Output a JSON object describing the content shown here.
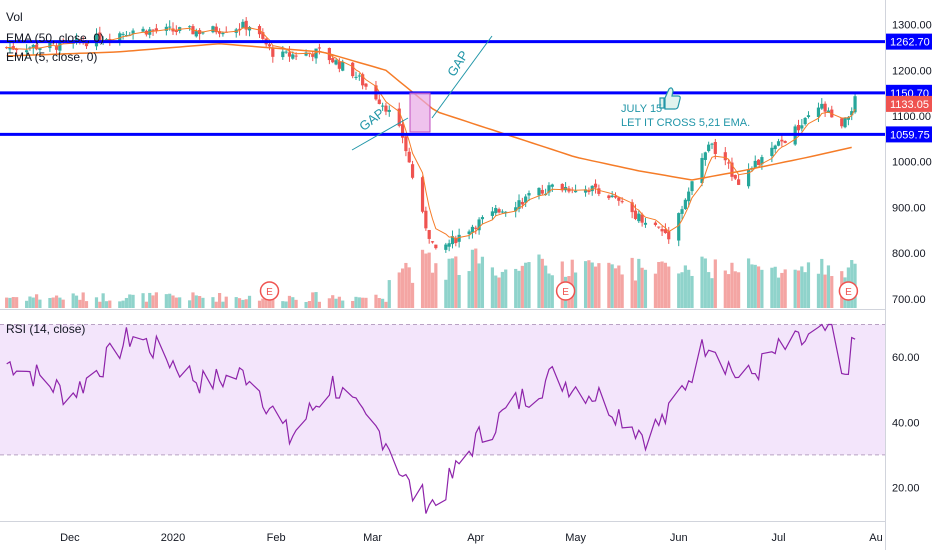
{
  "legend": {
    "vol": "Vol",
    "ema50": "EMA (50, close, 0)",
    "ema5": "EMA (5, close, 0)",
    "rsi": "RSI (14, close)"
  },
  "annotations": {
    "gap_left": "GAP",
    "gap_right": "GAP",
    "note_line1": "JULY 15",
    "note_line2": "LET IT CROSS 5,21 EMA.",
    "earnings_marker": "E"
  },
  "icons": [
    "thumbs-up-icon",
    "earnings-marker-icon"
  ],
  "colors": {
    "up": "#26a69a",
    "down": "#ef5350",
    "vol_up": "#8fd3cb",
    "vol_down": "#f4a5a3",
    "ema50": "#f57c28",
    "ema5": "#f57c28",
    "level": "#0000ff",
    "rsi": "#8e24aa",
    "rsi_band": "#f3e5fb",
    "annotation": "#2196a8",
    "current_price": "#ef5350"
  },
  "chart_data": [
    {
      "type": "candlestick",
      "title": "",
      "x_ticks": [
        "Dec",
        "2020",
        "Feb",
        "Mar",
        "Apr",
        "May",
        "Jun",
        "Jul",
        "Au"
      ],
      "y_ticks": [
        "1300.00",
        "1200.00",
        "1100.00",
        "1000.00",
        "900.00",
        "800.00",
        "700.00"
      ],
      "ylim": [
        680,
        1310
      ],
      "horizontal_levels": [
        {
          "label": "1262.70",
          "value": 1262.7
        },
        {
          "label": "1150.70",
          "value": 1150.7
        },
        {
          "label": "1059.75",
          "value": 1059.75
        }
      ],
      "current_price": {
        "label": "1133.05",
        "value": 1133.05
      },
      "earnings_markers": [
        "Jan",
        "Apr",
        "Jul"
      ],
      "ohlc_anchors": [
        {
          "date": "2019-11-15",
          "close": 1250
        },
        {
          "date": "2019-12-01",
          "close": 1255
        },
        {
          "date": "2019-12-20",
          "close": 1288
        },
        {
          "date": "2020-01-10",
          "close": 1285
        },
        {
          "date": "2020-01-24",
          "close": 1298
        },
        {
          "date": "2020-02-01",
          "close": 1230
        },
        {
          "date": "2020-02-14",
          "close": 1240
        },
        {
          "date": "2020-02-24",
          "close": 1195
        },
        {
          "date": "2020-03-05",
          "close": 1120
        },
        {
          "date": "2020-03-10",
          "close": 1055
        },
        {
          "date": "2020-03-16",
          "close": 880
        },
        {
          "date": "2020-03-20",
          "close": 800
        },
        {
          "date": "2020-03-31",
          "close": 860
        },
        {
          "date": "2020-04-10",
          "close": 900
        },
        {
          "date": "2020-04-24",
          "close": 945
        },
        {
          "date": "2020-05-08",
          "close": 940
        },
        {
          "date": "2020-05-20",
          "close": 880
        },
        {
          "date": "2020-05-29",
          "close": 840
        },
        {
          "date": "2020-06-05",
          "close": 950
        },
        {
          "date": "2020-06-10",
          "close": 1040
        },
        {
          "date": "2020-06-19",
          "close": 960
        },
        {
          "date": "2020-06-30",
          "close": 1030
        },
        {
          "date": "2020-07-08",
          "close": 1080
        },
        {
          "date": "2020-07-14",
          "close": 1120
        },
        {
          "date": "2020-07-20",
          "close": 1070
        },
        {
          "date": "2020-07-24",
          "close": 1133
        }
      ],
      "ema50_anchors": [
        {
          "date": "2019-11-15",
          "value": 1232
        },
        {
          "date": "2019-12-15",
          "value": 1240
        },
        {
          "date": "2020-01-15",
          "value": 1258
        },
        {
          "date": "2020-02-15",
          "value": 1240
        },
        {
          "date": "2020-03-05",
          "value": 1200
        },
        {
          "date": "2020-03-20",
          "value": 1110
        },
        {
          "date": "2020-04-10",
          "value": 1060
        },
        {
          "date": "2020-05-01",
          "value": 1010
        },
        {
          "date": "2020-05-20",
          "value": 980
        },
        {
          "date": "2020-06-05",
          "value": 960
        },
        {
          "date": "2020-06-20",
          "value": 980
        },
        {
          "date": "2020-07-10",
          "value": 1010
        },
        {
          "date": "2020-07-24",
          "value": 1033
        }
      ]
    },
    {
      "type": "line",
      "title": "",
      "name": "RSI (14, close)",
      "y_ticks": [
        "60.00",
        "40.00",
        "20.00"
      ],
      "ylim": [
        10,
        72
      ],
      "band": [
        30,
        70
      ],
      "anchors": [
        {
          "date": "2019-11-15",
          "value": 58
        },
        {
          "date": "2019-12-01",
          "value": 48
        },
        {
          "date": "2019-12-20",
          "value": 67
        },
        {
          "date": "2020-01-10",
          "value": 52
        },
        {
          "date": "2020-01-24",
          "value": 55
        },
        {
          "date": "2020-02-05",
          "value": 35
        },
        {
          "date": "2020-02-18",
          "value": 52
        },
        {
          "date": "2020-02-26",
          "value": 42
        },
        {
          "date": "2020-03-05",
          "value": 35
        },
        {
          "date": "2020-03-13",
          "value": 18
        },
        {
          "date": "2020-03-20",
          "value": 15
        },
        {
          "date": "2020-03-31",
          "value": 33
        },
        {
          "date": "2020-04-12",
          "value": 45
        },
        {
          "date": "2020-04-24",
          "value": 54
        },
        {
          "date": "2020-05-08",
          "value": 48
        },
        {
          "date": "2020-05-22",
          "value": 36
        },
        {
          "date": "2020-05-29",
          "value": 42
        },
        {
          "date": "2020-06-10",
          "value": 66
        },
        {
          "date": "2020-06-20",
          "value": 52
        },
        {
          "date": "2020-07-01",
          "value": 62
        },
        {
          "date": "2020-07-12",
          "value": 66
        },
        {
          "date": "2020-07-17",
          "value": 69
        },
        {
          "date": "2020-07-20",
          "value": 52
        },
        {
          "date": "2020-07-24",
          "value": 65
        }
      ]
    }
  ]
}
